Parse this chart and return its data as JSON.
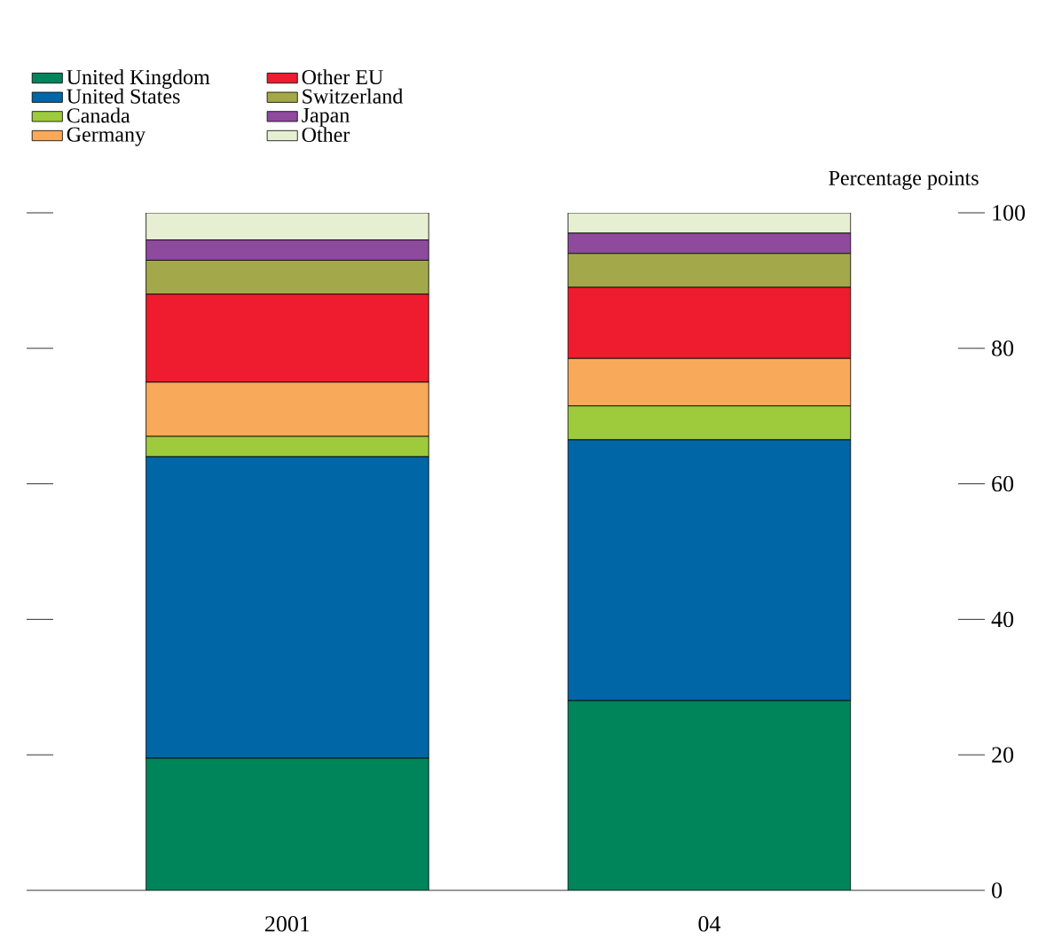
{
  "chart_data": {
    "type": "bar",
    "stacked": true,
    "categories": [
      "2001",
      "04"
    ],
    "ylabel": "Percentage points",
    "ylim": [
      0,
      100
    ],
    "yticks": [
      0,
      20,
      40,
      60,
      80,
      100
    ],
    "legend": "top left",
    "grid": false,
    "series": [
      {
        "name": "United Kingdom",
        "color": "#00855a",
        "values": [
          19.5,
          28
        ]
      },
      {
        "name": "United States",
        "color": "#0066a6",
        "values": [
          44.5,
          38.5
        ]
      },
      {
        "name": "Canada",
        "color": "#9dcb3c",
        "values": [
          3,
          5
        ]
      },
      {
        "name": "Germany",
        "color": "#f9a95a",
        "values": [
          8,
          7
        ]
      },
      {
        "name": "Other EU",
        "color": "#ee1c2e",
        "values": [
          13,
          10.5
        ]
      },
      {
        "name": "Switzerland",
        "color": "#a3a84a",
        "values": [
          5,
          5
        ]
      },
      {
        "name": "Japan",
        "color": "#8e4a9c",
        "values": [
          3,
          3
        ]
      },
      {
        "name": "Other",
        "color": "#e6efd2",
        "values": [
          4,
          3
        ]
      }
    ]
  }
}
